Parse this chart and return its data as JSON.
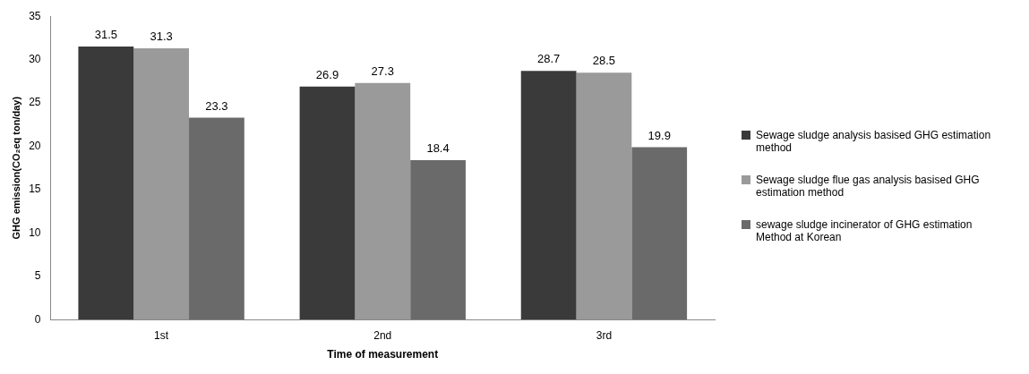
{
  "chart_data": {
    "type": "bar",
    "xlabel": "Time of measurement",
    "ylabel": "GHG emission(CO₂eq ton/day)",
    "categories": [
      "1st",
      "2nd",
      "3rd"
    ],
    "series": [
      {
        "name": "Sewage sludge analysis basised GHG estimation method",
        "color": "#3a3a3a",
        "values": [
          31.5,
          26.9,
          28.7
        ]
      },
      {
        "name": "Sewage sludge flue gas analysis basised GHG estimation method",
        "color": "#9a9a9a",
        "values": [
          31.3,
          27.3,
          28.5
        ]
      },
      {
        "name": "sewage sludge incinerator of GHG estimation Method at Korean",
        "color": "#6a6a6a",
        "values": [
          23.3,
          18.4,
          19.9
        ]
      }
    ],
    "ylim": [
      0,
      35
    ],
    "yticks": [
      0,
      5,
      10,
      15,
      20,
      25,
      30,
      35
    ],
    "grid": false,
    "legend": "right",
    "data_labels": true
  }
}
